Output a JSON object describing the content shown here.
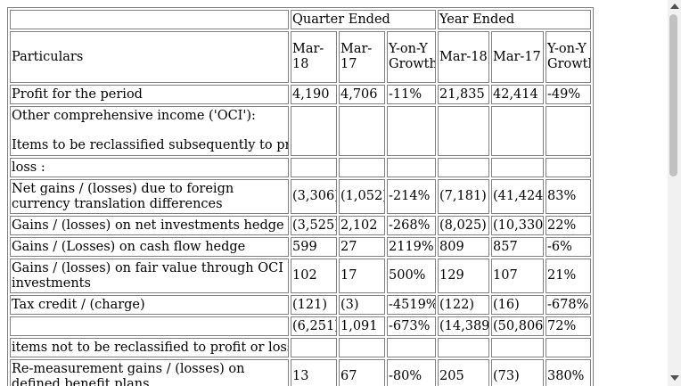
{
  "header": {
    "quarter_ended": "Quarter Ended",
    "year_ended": "Year Ended",
    "particulars": "Particulars",
    "cols": [
      "Mar-18",
      "Mar-17",
      "Y-on-Y Growth",
      "Mar-18",
      "Mar-17",
      "Y-on-Y Growth"
    ]
  },
  "rows": {
    "profit": {
      "label": "Profit for the period",
      "vals": [
        "4,190",
        "4,706",
        "-11%",
        "21,835",
        "42,414",
        "-49%"
      ]
    },
    "oci": {
      "line1": "Other comprehensive income ('OCI'):",
      "line2": "Items to be reclassified subsequently to profit or"
    },
    "loss": {
      "label": "loss :"
    },
    "fx": {
      "label": "Net gains / (losses) due to foreign currency translation differences",
      "vals": [
        "(3,306)",
        "(1,052)",
        "-214%",
        "(7,181)",
        "(41,424)",
        "83%"
      ]
    },
    "nih": {
      "label": "Gains / (losses) on net investments hedge",
      "vals": [
        "(3,525)",
        "2,102",
        "-268%",
        "(8,025)",
        "(10,330)",
        "22%"
      ]
    },
    "cfh": {
      "label": "Gains / (Losses) on cash flow hedge",
      "vals": [
        "599",
        "27",
        "2119%",
        "809",
        "857",
        "-6%"
      ]
    },
    "fv": {
      "label": "Gains / (losses) on fair value through OCI investments",
      "vals": [
        "102",
        "17",
        "500%",
        "129",
        "107",
        "21%"
      ]
    },
    "tax": {
      "label": "Tax credit / (charge)",
      "vals": [
        "(121)",
        "(3)",
        "-4519%",
        "(122)",
        "(16)",
        "-678%"
      ]
    },
    "subtotal": {
      "label": "",
      "vals": [
        "(6,251)",
        "1,091",
        "-673%",
        "(14,389)",
        "(50,806)",
        "72%"
      ]
    },
    "notre": {
      "label": "items not to be reclassified to profit or loss :"
    },
    "remeas": {
      "label": "Re-measurement gains / (losses) on defined benefit plans",
      "vals": [
        "13",
        "67",
        "-80%",
        "205",
        "(73)",
        "380%"
      ]
    }
  }
}
